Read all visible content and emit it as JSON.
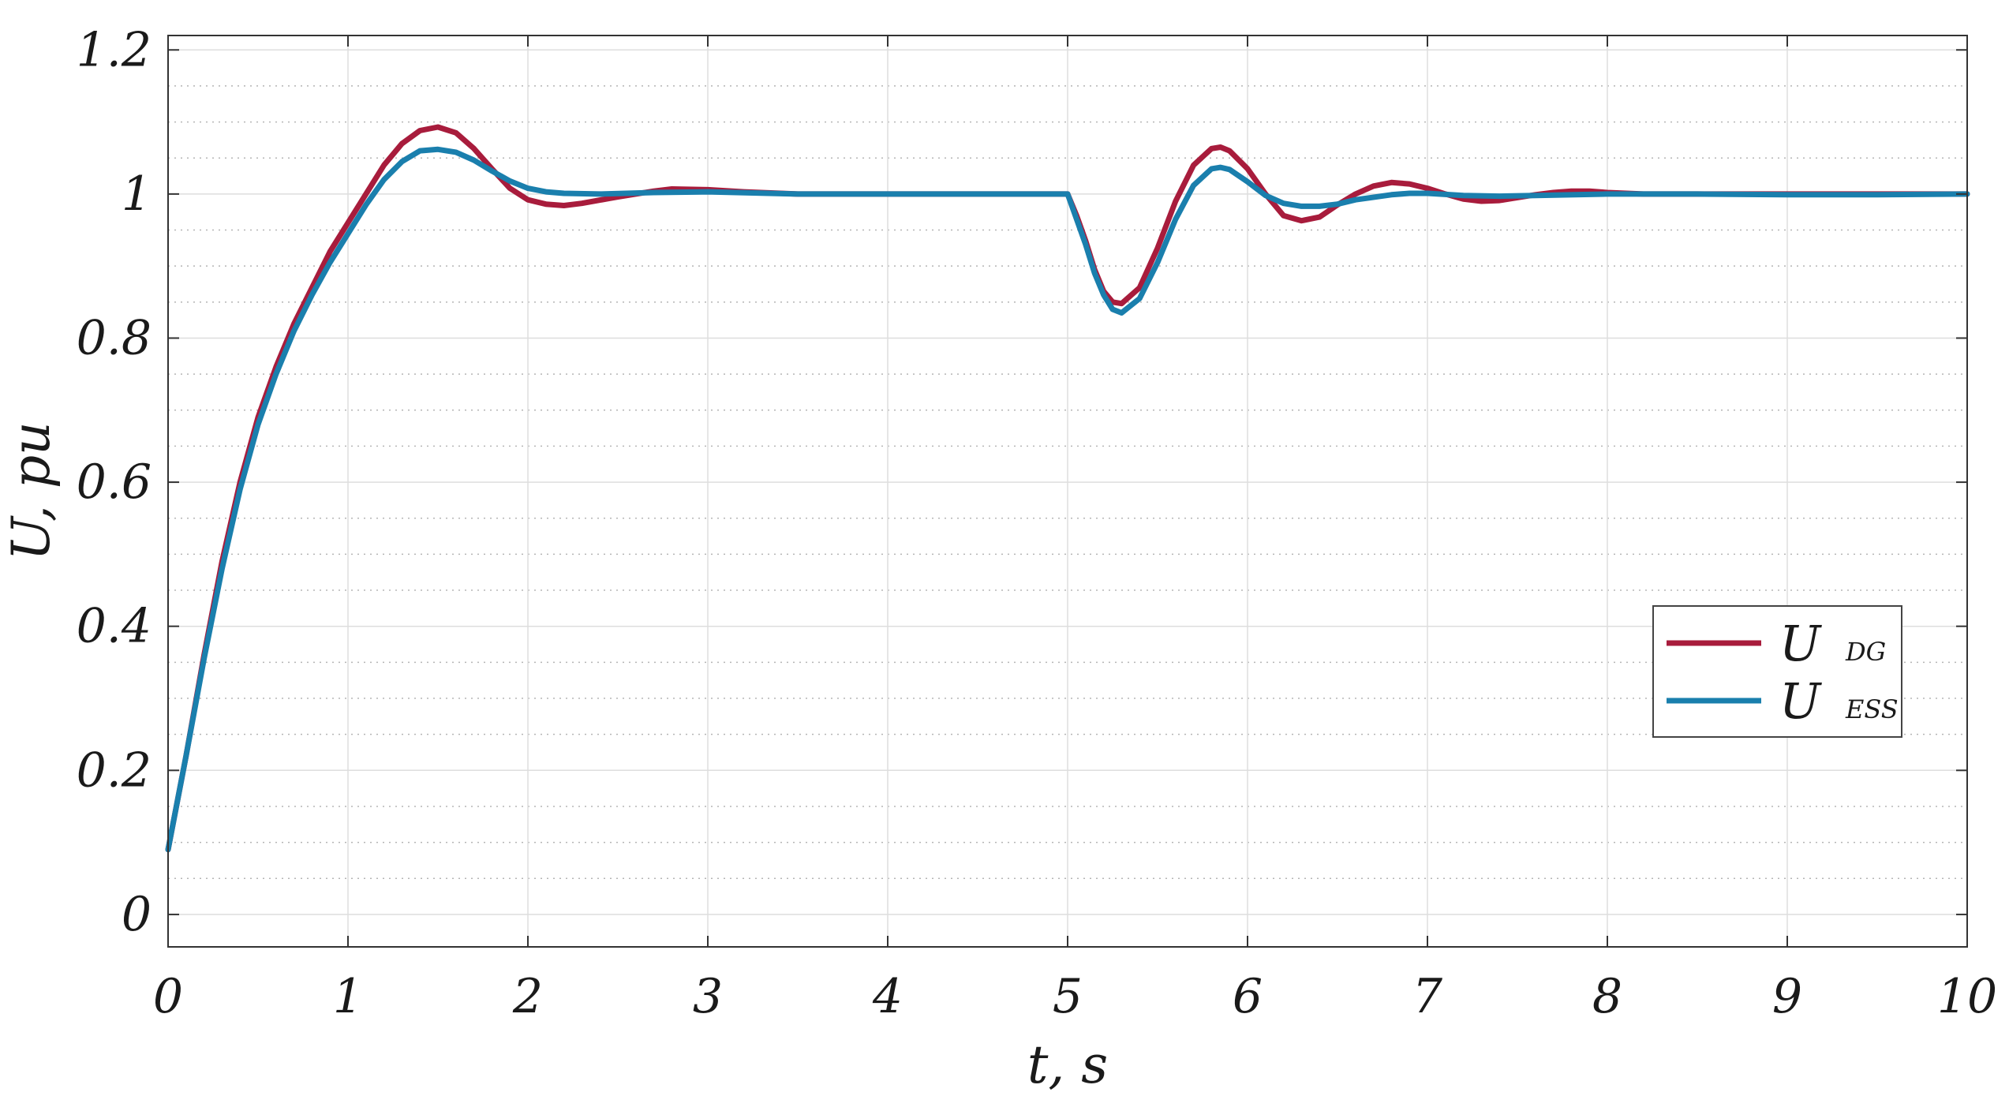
{
  "chart_data": {
    "type": "line",
    "title": "",
    "xlabel": "t, s",
    "ylabel": "U, pu",
    "xlim": [
      0,
      10
    ],
    "ylim": [
      -0.045,
      1.22
    ],
    "xticks": [
      "0",
      "1",
      "2",
      "3",
      "4",
      "5",
      "6",
      "7",
      "8",
      "9",
      "10"
    ],
    "yticks": [
      "0",
      "0.2",
      "0.4",
      "0.6",
      "0.8",
      "1",
      "1.2"
    ],
    "grid": "major and minor (dotted)",
    "legend_position": "center-right",
    "series": [
      {
        "name": "U",
        "subscript": "DG",
        "color": "#a81c3c",
        "x": [
          0,
          0.1,
          0.2,
          0.3,
          0.4,
          0.5,
          0.6,
          0.7,
          0.8,
          0.9,
          1.0,
          1.1,
          1.2,
          1.3,
          1.4,
          1.5,
          1.6,
          1.7,
          1.8,
          1.9,
          2.0,
          2.1,
          2.2,
          2.3,
          2.5,
          2.7,
          2.8,
          3.0,
          3.2,
          3.5,
          4.0,
          4.5,
          4.98,
          5.0,
          5.05,
          5.1,
          5.15,
          5.2,
          5.25,
          5.3,
          5.4,
          5.5,
          5.6,
          5.7,
          5.8,
          5.85,
          5.9,
          6.0,
          6.1,
          6.2,
          6.3,
          6.4,
          6.5,
          6.6,
          6.7,
          6.8,
          6.9,
          7.0,
          7.1,
          7.2,
          7.3,
          7.4,
          7.5,
          7.6,
          7.7,
          7.8,
          7.9,
          8.0,
          8.2,
          8.5,
          9.0,
          9.5,
          10.0
        ],
        "values": [
          0.09,
          0.22,
          0.36,
          0.49,
          0.6,
          0.69,
          0.76,
          0.82,
          0.87,
          0.92,
          0.96,
          1.0,
          1.04,
          1.07,
          1.088,
          1.093,
          1.085,
          1.063,
          1.035,
          1.008,
          0.992,
          0.986,
          0.984,
          0.987,
          0.996,
          1.004,
          1.007,
          1.006,
          1.003,
          1.0,
          1.0,
          1.0,
          1.0,
          1.0,
          0.97,
          0.935,
          0.895,
          0.865,
          0.85,
          0.848,
          0.87,
          0.925,
          0.99,
          1.04,
          1.063,
          1.065,
          1.06,
          1.035,
          1.0,
          0.97,
          0.963,
          0.968,
          0.985,
          1.0,
          1.011,
          1.016,
          1.014,
          1.008,
          1.0,
          0.993,
          0.99,
          0.991,
          0.995,
          0.999,
          1.002,
          1.004,
          1.004,
          1.002,
          1.0,
          1.0,
          1.0,
          1.0,
          1.0
        ]
      },
      {
        "name": "U",
        "subscript": "ESS",
        "color": "#1a7fad",
        "x": [
          0,
          0.1,
          0.2,
          0.3,
          0.4,
          0.5,
          0.6,
          0.7,
          0.8,
          0.9,
          1.0,
          1.1,
          1.2,
          1.3,
          1.4,
          1.5,
          1.6,
          1.7,
          1.8,
          1.9,
          2.0,
          2.1,
          2.2,
          2.4,
          2.7,
          3.0,
          3.5,
          4.0,
          4.5,
          4.98,
          5.0,
          5.05,
          5.1,
          5.15,
          5.2,
          5.25,
          5.3,
          5.4,
          5.5,
          5.6,
          5.7,
          5.8,
          5.85,
          5.9,
          6.0,
          6.1,
          6.2,
          6.3,
          6.4,
          6.5,
          6.6,
          6.8,
          6.9,
          7.0,
          7.2,
          7.4,
          7.6,
          8.0,
          8.5,
          9.0,
          9.5,
          10.0
        ],
        "values": [
          0.09,
          0.22,
          0.355,
          0.48,
          0.59,
          0.68,
          0.75,
          0.81,
          0.86,
          0.905,
          0.945,
          0.985,
          1.02,
          1.045,
          1.06,
          1.062,
          1.058,
          1.047,
          1.032,
          1.018,
          1.008,
          1.003,
          1.001,
          1.0,
          1.002,
          1.003,
          1.0,
          1.0,
          1.0,
          1.0,
          1.0,
          0.965,
          0.93,
          0.89,
          0.86,
          0.84,
          0.835,
          0.855,
          0.905,
          0.965,
          1.012,
          1.035,
          1.037,
          1.034,
          1.017,
          0.998,
          0.987,
          0.983,
          0.983,
          0.986,
          0.992,
          0.999,
          1.001,
          1.001,
          0.998,
          0.997,
          0.998,
          1.0,
          1.0,
          0.999,
          0.999,
          1.0
        ]
      }
    ]
  }
}
